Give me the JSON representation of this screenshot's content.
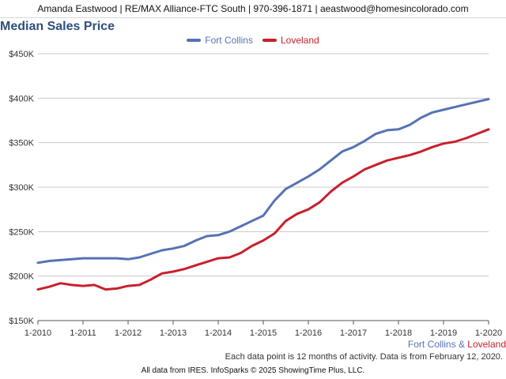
{
  "header": {
    "contact": "Amanda Eastwood | RE/MAX Alliance-FTC South | 970-396-1871 | aeastwood@homesincolorado.com"
  },
  "chart_data": {
    "type": "line",
    "title": "Median Sales Price",
    "xlabel": "",
    "ylabel": "",
    "ylim": [
      150000,
      450000
    ],
    "xlim": [
      "2010-01",
      "2020-01"
    ],
    "grid": true,
    "legend_position": "top-center",
    "y_ticks": [
      {
        "value": 150000,
        "label": "$150K"
      },
      {
        "value": 200000,
        "label": "$200K"
      },
      {
        "value": 250000,
        "label": "$250K"
      },
      {
        "value": 300000,
        "label": "$300K"
      },
      {
        "value": 350000,
        "label": "$350K"
      },
      {
        "value": 400000,
        "label": "$400K"
      },
      {
        "value": 450000,
        "label": "$450K"
      }
    ],
    "x_ticks": [
      "1-2010",
      "1-2011",
      "1-2012",
      "1-2013",
      "1-2014",
      "1-2015",
      "1-2016",
      "1-2017",
      "1-2018",
      "1-2019",
      "1-2020"
    ],
    "x": [
      "2010-01",
      "2010-04",
      "2010-07",
      "2010-10",
      "2011-01",
      "2011-04",
      "2011-07",
      "2011-10",
      "2012-01",
      "2012-04",
      "2012-07",
      "2012-10",
      "2013-01",
      "2013-04",
      "2013-07",
      "2013-10",
      "2014-01",
      "2014-04",
      "2014-07",
      "2014-10",
      "2015-01",
      "2015-04",
      "2015-07",
      "2015-10",
      "2016-01",
      "2016-04",
      "2016-07",
      "2016-10",
      "2017-01",
      "2017-04",
      "2017-07",
      "2017-10",
      "2018-01",
      "2018-04",
      "2018-07",
      "2018-10",
      "2019-01",
      "2019-04",
      "2019-07",
      "2019-10",
      "2020-01"
    ],
    "series": [
      {
        "name": "Fort Collins",
        "color": "#5572b4",
        "values": [
          215000,
          217000,
          218000,
          219000,
          220000,
          220000,
          220000,
          220000,
          219000,
          221000,
          225000,
          229000,
          231000,
          234000,
          240000,
          245000,
          246000,
          250000,
          256000,
          262000,
          268000,
          285000,
          298000,
          305000,
          312000,
          320000,
          330000,
          340000,
          345000,
          352000,
          360000,
          364000,
          365000,
          370000,
          378000,
          384000,
          387000,
          390000,
          393000,
          396000,
          399000
        ]
      },
      {
        "name": "Loveland",
        "color": "#c8202b",
        "values": [
          185000,
          188000,
          192000,
          190000,
          189000,
          190000,
          185000,
          186000,
          189000,
          190000,
          196000,
          203000,
          205000,
          208000,
          212000,
          216000,
          220000,
          221000,
          226000,
          234000,
          240000,
          248000,
          262000,
          270000,
          275000,
          283000,
          295000,
          305000,
          312000,
          320000,
          325000,
          330000,
          333000,
          336000,
          340000,
          345000,
          349000,
          351000,
          355000,
          360000,
          365000
        ]
      }
    ]
  },
  "notes": {
    "series_fort_collins": "Fort Collins",
    "series_ampersand": " & ",
    "series_loveland": "Loveland",
    "coverage": "Each data point is 12 months of activity. Data is from February 12, 2020."
  },
  "footer": {
    "text": "All data from IRES. InfoSparks © 2025 ShowingTime Plus, LLC."
  }
}
